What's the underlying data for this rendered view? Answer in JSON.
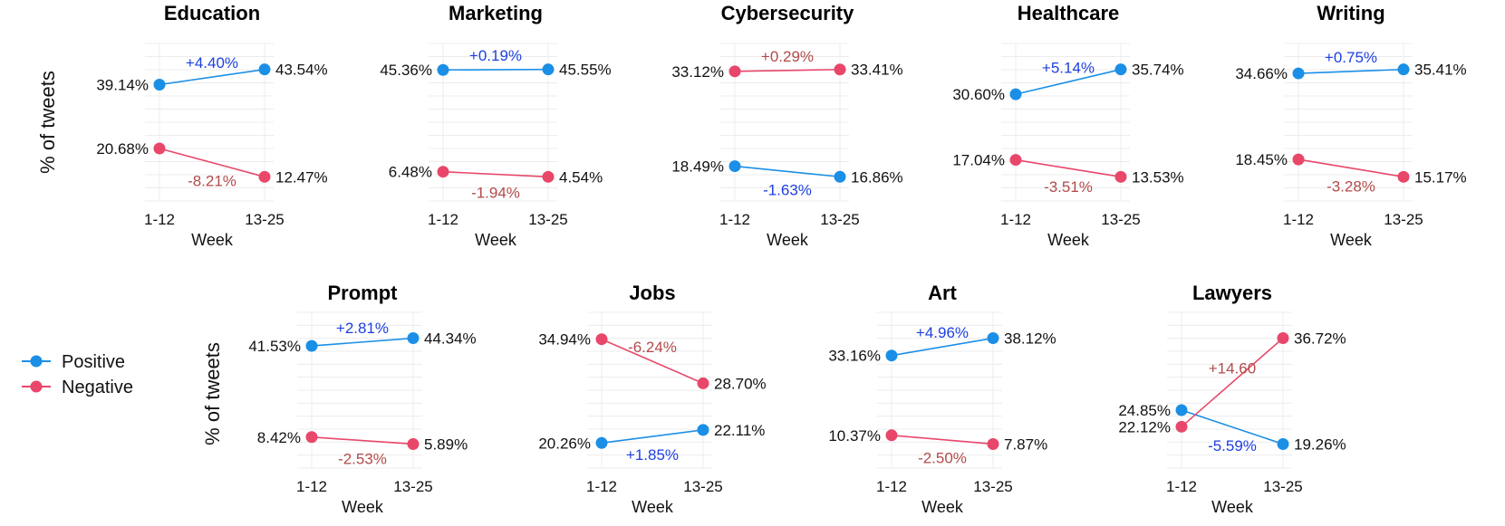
{
  "colors": {
    "positive": "#1b8fe6",
    "negative": "#e8476a",
    "pos_diff": "#1d3fe0",
    "neg_diff": "#b24a4a"
  },
  "legend": {
    "positive": "Positive",
    "negative": "Negative"
  },
  "chart_data": [
    {
      "type": "line",
      "title": "Education",
      "categories": [
        "1-12",
        "13-25"
      ],
      "xlabel": "Week",
      "ylabel": "% of tweets",
      "series": [
        {
          "name": "Positive",
          "values": [
            39.14,
            43.54
          ],
          "labels": [
            "39.14%",
            "43.54%"
          ],
          "diff": "+4.40%"
        },
        {
          "name": "Negative",
          "values": [
            20.68,
            12.47
          ],
          "labels": [
            "20.68%",
            "12.47%"
          ],
          "diff": "-8.21%"
        }
      ]
    },
    {
      "type": "line",
      "title": "Marketing",
      "categories": [
        "1-12",
        "13-25"
      ],
      "xlabel": "Week",
      "ylabel": "",
      "series": [
        {
          "name": "Positive",
          "values": [
            45.36,
            45.55
          ],
          "labels": [
            "45.36%",
            "45.55%"
          ],
          "diff": "+0.19%"
        },
        {
          "name": "Negative",
          "values": [
            6.48,
            4.54
          ],
          "labels": [
            "6.48%",
            "4.54%"
          ],
          "diff": "-1.94%"
        }
      ]
    },
    {
      "type": "line",
      "title": "Cybersecurity",
      "categories": [
        "1-12",
        "13-25"
      ],
      "xlabel": "Week",
      "ylabel": "",
      "series": [
        {
          "name": "Positive",
          "values": [
            18.49,
            16.86
          ],
          "labels": [
            "18.49%",
            "16.86%"
          ],
          "diff": "-1.63%"
        },
        {
          "name": "Negative",
          "values": [
            33.12,
            33.41
          ],
          "labels": [
            "33.12%",
            "33.41%"
          ],
          "diff": "+0.29%"
        }
      ]
    },
    {
      "type": "line",
      "title": "Healthcare",
      "categories": [
        "1-12",
        "13-25"
      ],
      "xlabel": "Week",
      "ylabel": "",
      "series": [
        {
          "name": "Positive",
          "values": [
            30.6,
            35.74
          ],
          "labels": [
            "30.60%",
            "35.74%"
          ],
          "diff": "+5.14%"
        },
        {
          "name": "Negative",
          "values": [
            17.04,
            13.53
          ],
          "labels": [
            "17.04%",
            "13.53%"
          ],
          "diff": "-3.51%"
        }
      ]
    },
    {
      "type": "line",
      "title": "Writing",
      "categories": [
        "1-12",
        "13-25"
      ],
      "xlabel": "Week",
      "ylabel": "",
      "series": [
        {
          "name": "Positive",
          "values": [
            34.66,
            35.41
          ],
          "labels": [
            "34.66%",
            "35.41%"
          ],
          "diff": "+0.75%"
        },
        {
          "name": "Negative",
          "values": [
            18.45,
            15.17
          ],
          "labels": [
            "18.45%",
            "15.17%"
          ],
          "diff": "-3.28%"
        }
      ]
    },
    {
      "type": "line",
      "title": "Prompt",
      "categories": [
        "1-12",
        "13-25"
      ],
      "xlabel": "Week",
      "ylabel": "% of tweets",
      "series": [
        {
          "name": "Positive",
          "values": [
            41.53,
            44.34
          ],
          "labels": [
            "41.53%",
            "44.34%"
          ],
          "diff": "+2.81%"
        },
        {
          "name": "Negative",
          "values": [
            8.42,
            5.89
          ],
          "labels": [
            "8.42%",
            "5.89%"
          ],
          "diff": "-2.53%"
        }
      ]
    },
    {
      "type": "line",
      "title": "Jobs",
      "categories": [
        "1-12",
        "13-25"
      ],
      "xlabel": "Week",
      "ylabel": "",
      "series": [
        {
          "name": "Positive",
          "values": [
            20.26,
            22.11
          ],
          "labels": [
            "20.26%",
            "22.11%"
          ],
          "diff": "+1.85%"
        },
        {
          "name": "Negative",
          "values": [
            34.94,
            28.7
          ],
          "labels": [
            "34.94%",
            "28.70%"
          ],
          "diff": "-6.24%"
        }
      ]
    },
    {
      "type": "line",
      "title": "Art",
      "categories": [
        "1-12",
        "13-25"
      ],
      "xlabel": "Week",
      "ylabel": "",
      "series": [
        {
          "name": "Positive",
          "values": [
            33.16,
            38.12
          ],
          "labels": [
            "33.16%",
            "38.12%"
          ],
          "diff": "+4.96%"
        },
        {
          "name": "Negative",
          "values": [
            10.37,
            7.87
          ],
          "labels": [
            "10.37%",
            "7.87%"
          ],
          "diff": "-2.50%"
        }
      ]
    },
    {
      "type": "line",
      "title": "Lawyers",
      "categories": [
        "1-12",
        "13-25"
      ],
      "xlabel": "Week",
      "ylabel": "",
      "series": [
        {
          "name": "Positive",
          "values": [
            24.85,
            19.26
          ],
          "labels": [
            "24.85%",
            "19.26%"
          ],
          "diff": "-5.59%"
        },
        {
          "name": "Negative",
          "values": [
            22.12,
            36.72
          ],
          "labels": [
            "22.12%",
            "36.72%"
          ],
          "diff": "+14.60"
        }
      ]
    }
  ]
}
